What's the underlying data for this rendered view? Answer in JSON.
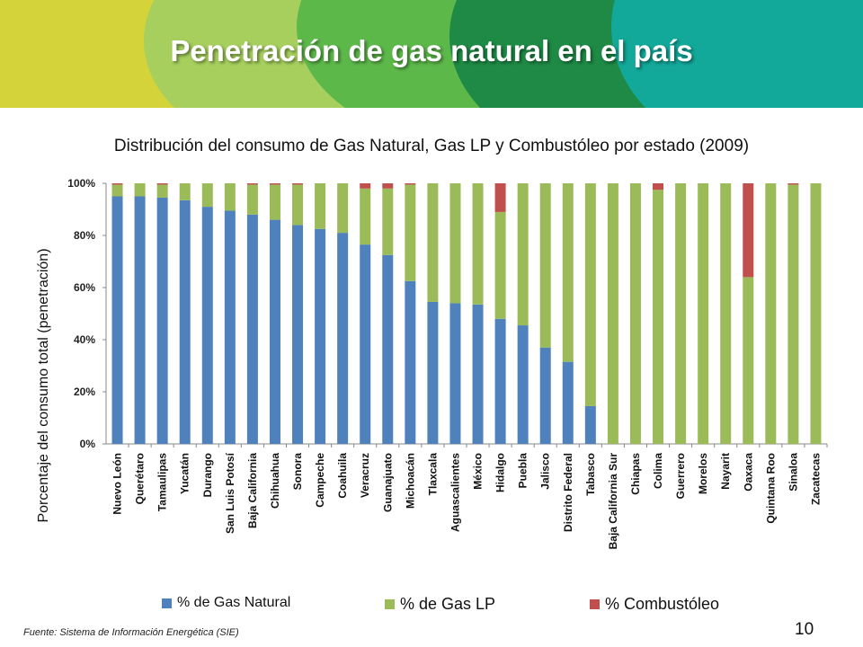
{
  "slide": {
    "title": "Penetración de gas natural en el país",
    "source": "Fuente: Sistema de Información Energética (SIE)",
    "page_number": "10"
  },
  "colors": {
    "gas_natural": "#4F81BD",
    "gas_lp": "#9BBB59",
    "combustoleo": "#C0504D",
    "banner_yellow": "#D4D43A",
    "banner_light_green": "#A6CF5E",
    "banner_green": "#5DB84A",
    "banner_dark_green": "#1E8A45",
    "banner_teal": "#12A89A"
  },
  "chart_data": {
    "type": "bar",
    "stacked": true,
    "title": "Distribución del consumo de Gas Natural, Gas LP y Combustóleo por estado (2009)",
    "xlabel": "",
    "ylabel": "Porcentaje del consumo total (penetración)",
    "ylim": [
      0,
      100
    ],
    "yticks": [
      "0%",
      "20%",
      "40%",
      "60%",
      "80%",
      "100%"
    ],
    "grid": false,
    "legend_position": "bottom",
    "categories": [
      "Nuevo León",
      "Querétaro",
      "Tamaulipas",
      "Yucatán",
      "Durango",
      "San Luis Potosí",
      "Baja California",
      "Chihuahua",
      "Sonora",
      "Campeche",
      "Coahuila",
      "Veracruz",
      "Guanajuato",
      "Michoacán",
      "Tlaxcala",
      "Aguascalientes",
      "México",
      "Hidalgo",
      "Puebla",
      "Jalisco",
      "Distrito Federal",
      "Tabasco",
      "Baja California Sur",
      "Chiapas",
      "Colima",
      "Guerrero",
      "Morelos",
      "Nayarit",
      "Oaxaca",
      "Quintana Roo",
      "Sinaloa",
      "Zacatecas"
    ],
    "series": [
      {
        "name": "% de Gas Natural",
        "values": [
          95,
          95,
          94.5,
          93.5,
          91,
          89.5,
          88,
          86,
          84,
          82.5,
          81,
          76.5,
          72.5,
          62.5,
          54.5,
          54,
          53.5,
          48,
          45.5,
          37,
          31.5,
          14.5,
          0,
          0,
          0,
          0,
          0,
          0,
          0,
          0,
          0,
          0
        ]
      },
      {
        "name": "% de Gas LP",
        "values": [
          4.5,
          5,
          5,
          6.5,
          9,
          10.5,
          11.5,
          13.5,
          15.5,
          17.5,
          19,
          21.5,
          25.5,
          37,
          45.5,
          46,
          46.5,
          41,
          54.5,
          63,
          68.5,
          85.5,
          100,
          100,
          97.5,
          100,
          100,
          100,
          64,
          100,
          99.5,
          100
        ]
      },
      {
        "name": "% Combustóleo",
        "values": [
          0.5,
          0,
          0.5,
          0,
          0,
          0,
          0.5,
          0.5,
          0.5,
          0,
          0,
          2,
          2,
          0.5,
          0,
          0,
          0,
          11,
          0,
          0,
          0,
          0,
          0,
          0,
          2.5,
          0,
          0,
          0,
          36,
          0,
          0.5,
          0
        ]
      }
    ]
  }
}
